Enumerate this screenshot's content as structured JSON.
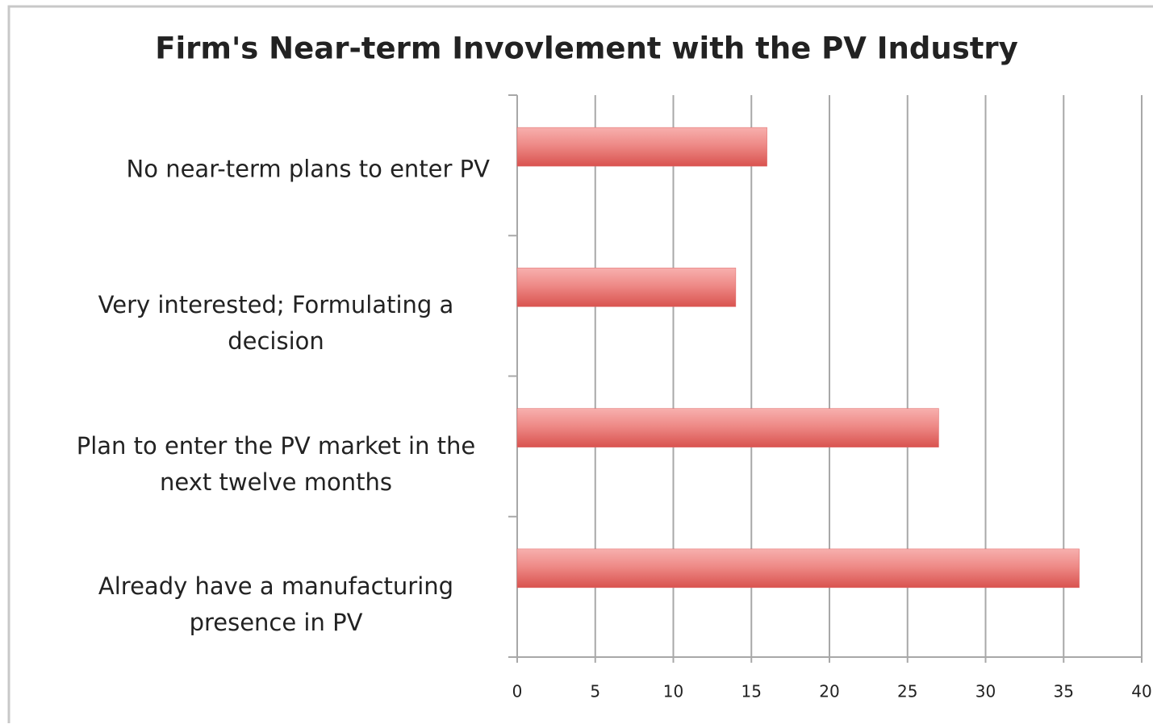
{
  "chart_data": {
    "type": "bar",
    "orientation": "horizontal",
    "title": "Firm's Near-term Invovlement with the PV Industry",
    "categories": [
      "No near-term plans to enter PV",
      "Very interested; Formulating a decision",
      "Plan to enter the PV market in the next twelve months",
      "Already have a manufacturing presence in PV"
    ],
    "values": [
      16,
      14,
      27,
      36
    ],
    "color": "#e06666",
    "xlim": [
      0,
      40
    ],
    "xticks": [
      0,
      5,
      10,
      15,
      20,
      25,
      30,
      35,
      40
    ],
    "grid": true
  }
}
